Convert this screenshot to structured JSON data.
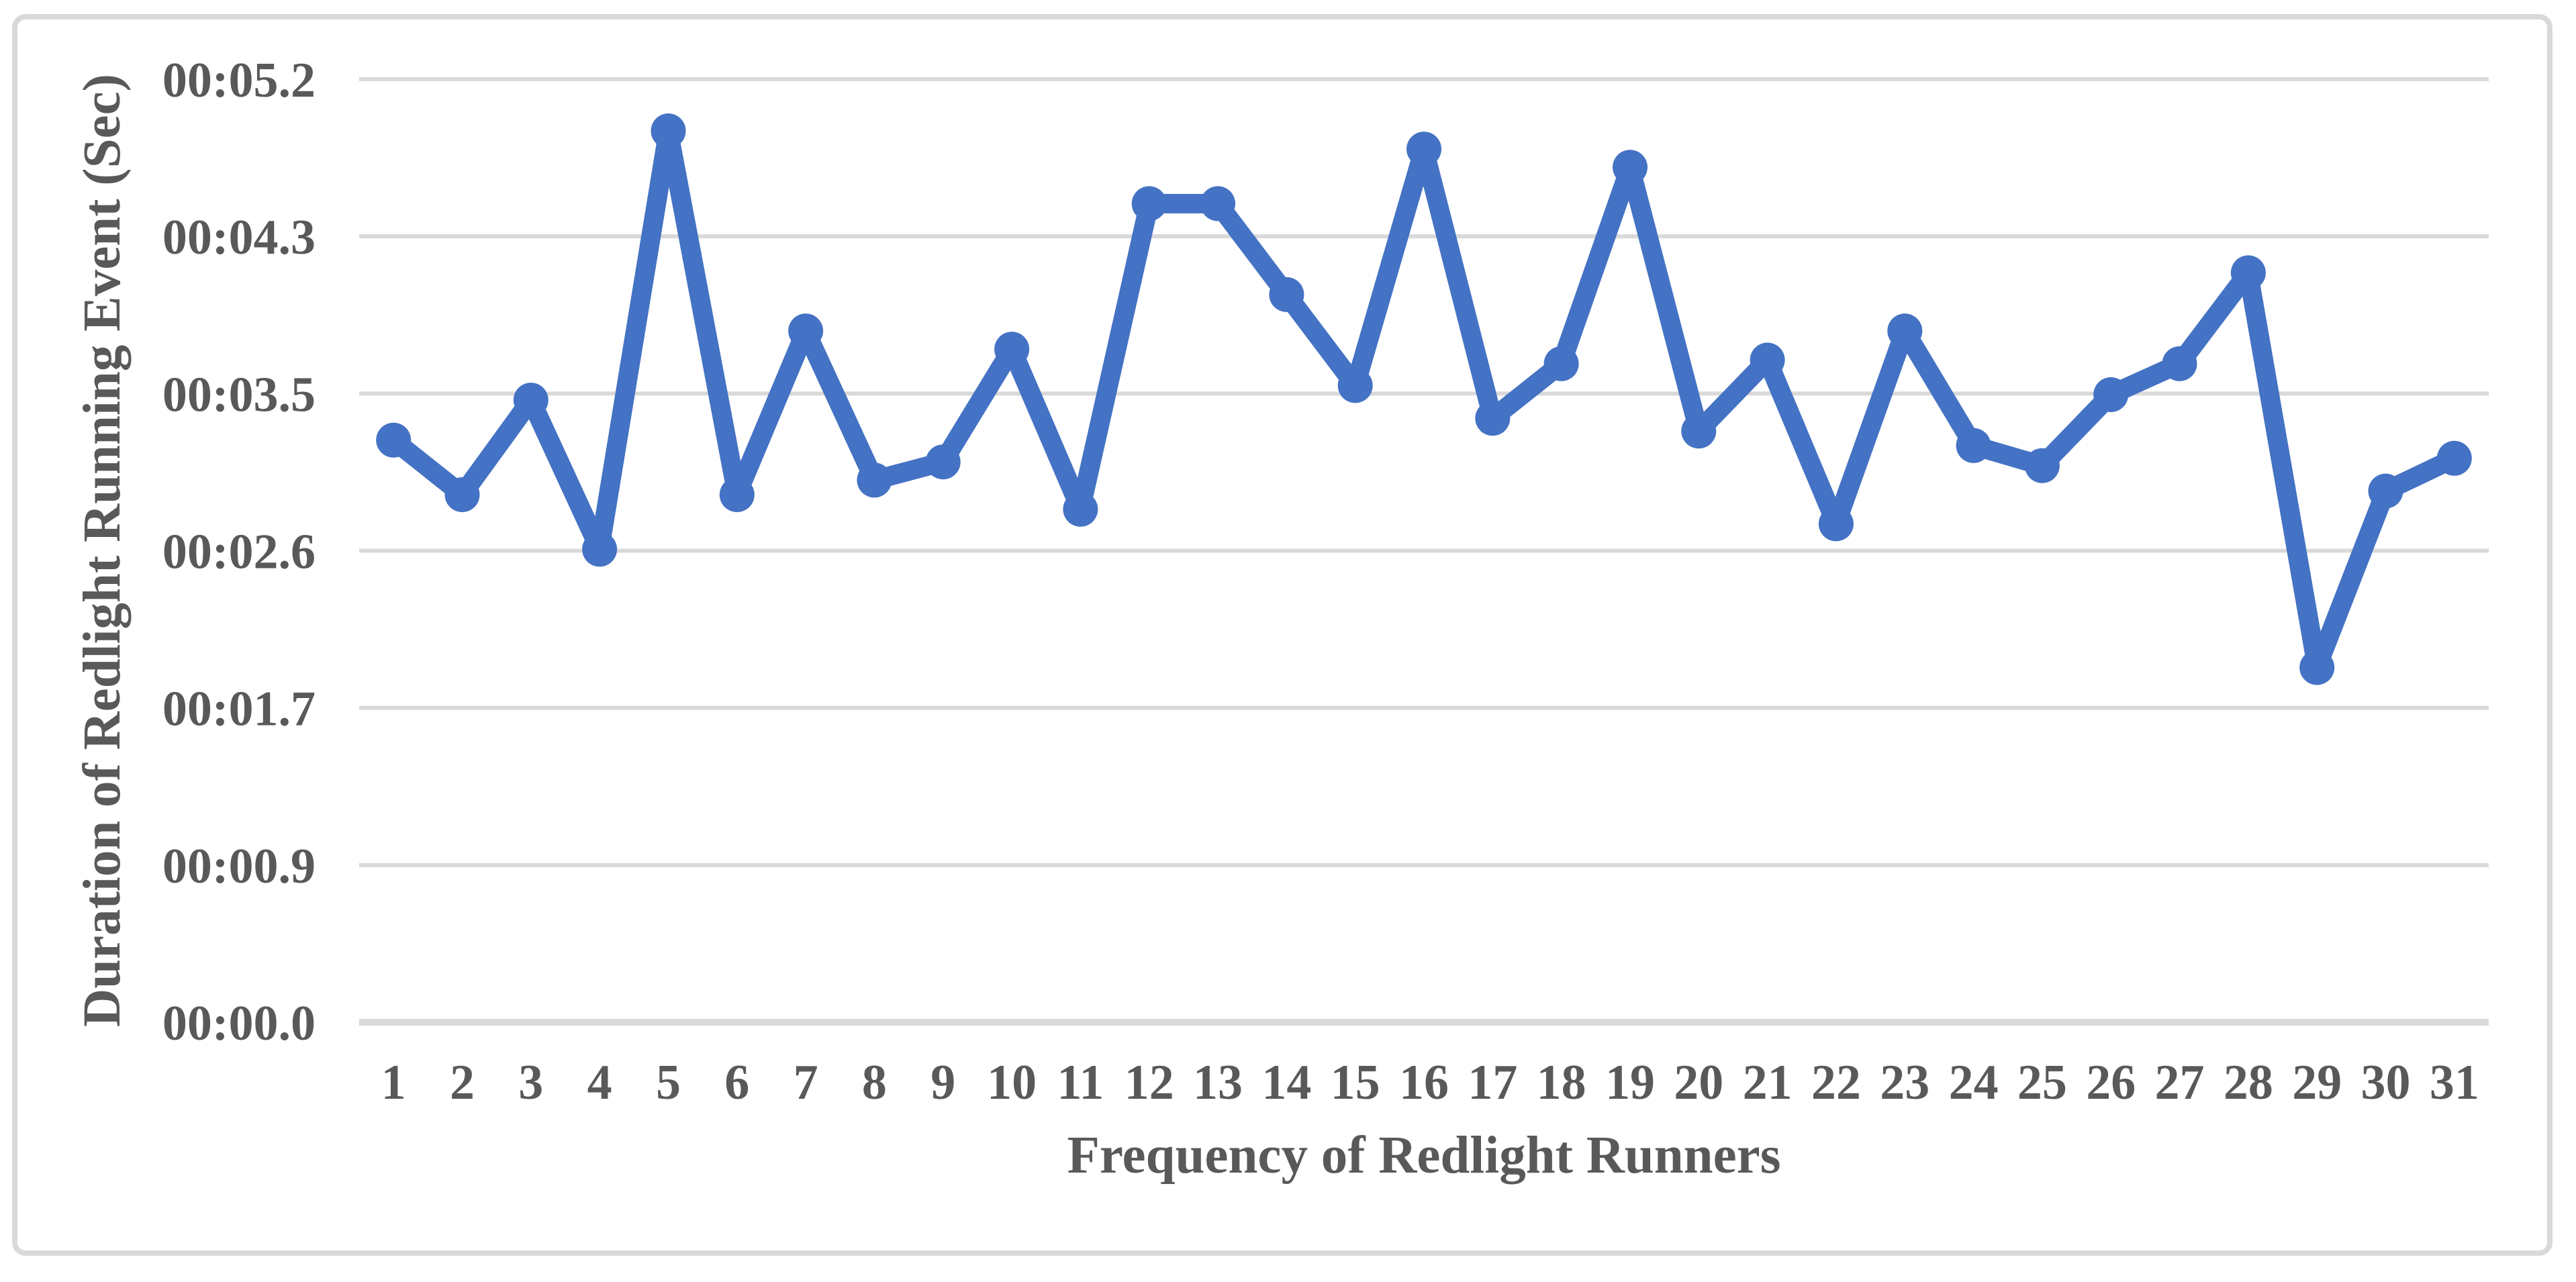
{
  "chart_data": {
    "type": "line",
    "title": "",
    "xlabel": "Frequency of Redlight Runners",
    "ylabel": "Duration of Redlight Running Event (Sec)",
    "x_categories": [
      "1",
      "2",
      "3",
      "4",
      "5",
      "6",
      "7",
      "8",
      "9",
      "10",
      "11",
      "12",
      "13",
      "14",
      "15",
      "16",
      "17",
      "18",
      "19",
      "20",
      "21",
      "22",
      "23",
      "24",
      "25",
      "26",
      "27",
      "28",
      "29",
      "30",
      "31"
    ],
    "series": [
      {
        "name": "Duration of Redlight Running Event",
        "values_seconds": [
          3.2,
          2.9,
          3.42,
          2.6,
          4.9,
          2.9,
          3.8,
          2.98,
          3.08,
          3.7,
          2.82,
          4.5,
          4.5,
          4.0,
          3.5,
          4.8,
          3.32,
          3.62,
          4.7,
          3.25,
          3.64,
          2.74,
          3.8,
          3.17,
          3.06,
          3.45,
          3.62,
          4.12,
          1.95,
          2.92,
          3.1
        ]
      }
    ],
    "y_ticks": [
      {
        "label": "00:00.0",
        "value": 0
      },
      {
        "label": "00:00.9",
        "value": 0.864
      },
      {
        "label": "00:01.7",
        "value": 1.728
      },
      {
        "label": "00:02.6",
        "value": 2.592
      },
      {
        "label": "00:03.5",
        "value": 3.456
      },
      {
        "label": "00:04.3",
        "value": 4.32
      },
      {
        "label": "00:05.2",
        "value": 5.184
      }
    ],
    "ylim": [
      0,
      5.184
    ],
    "grid": "horizontal-only",
    "legend": "none",
    "marker": "circle"
  },
  "style": {
    "series_color": "#4472C4",
    "gridline_color": "#D9D9D9",
    "axis_line_color": "#D9D9D9",
    "frame_border_color": "#D9D9D9",
    "text_color": "#595959",
    "background": "#FFFFFF"
  }
}
